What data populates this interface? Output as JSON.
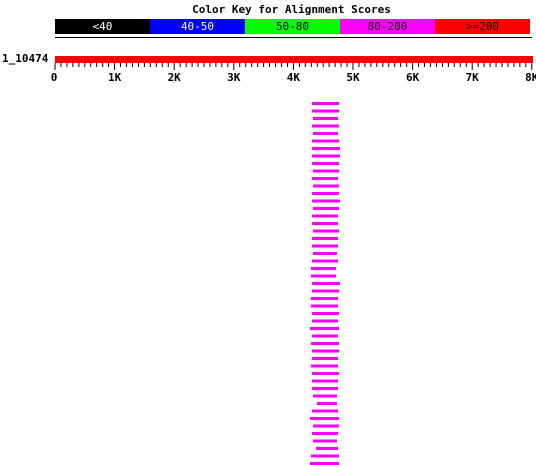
{
  "title": "Color Key for Alignment Scores",
  "key": [
    {
      "label": "<40",
      "color": "#000000",
      "text_color": "#ffffff"
    },
    {
      "label": "40-50",
      "color": "#0000ff",
      "text_color": "#ffffff"
    },
    {
      "label": "50-80",
      "color": "#00ff00",
      "text_color": "#000000"
    },
    {
      "label": "80-200",
      "color": "#ff00ff",
      "text_color": "#000000"
    },
    {
      "label": ">=200",
      "color": "#ff0000",
      "text_color": "#000000"
    }
  ],
  "query": {
    "label": "1_10474",
    "color": "#ff0000"
  },
  "axis": {
    "ticks": [
      "0",
      "1K",
      "2K",
      "3K",
      "4K",
      "5K",
      "6K",
      "7K",
      "8K"
    ],
    "max": 8000
  },
  "hits": {
    "color": "#ff00ff",
    "count": 49
  }
}
